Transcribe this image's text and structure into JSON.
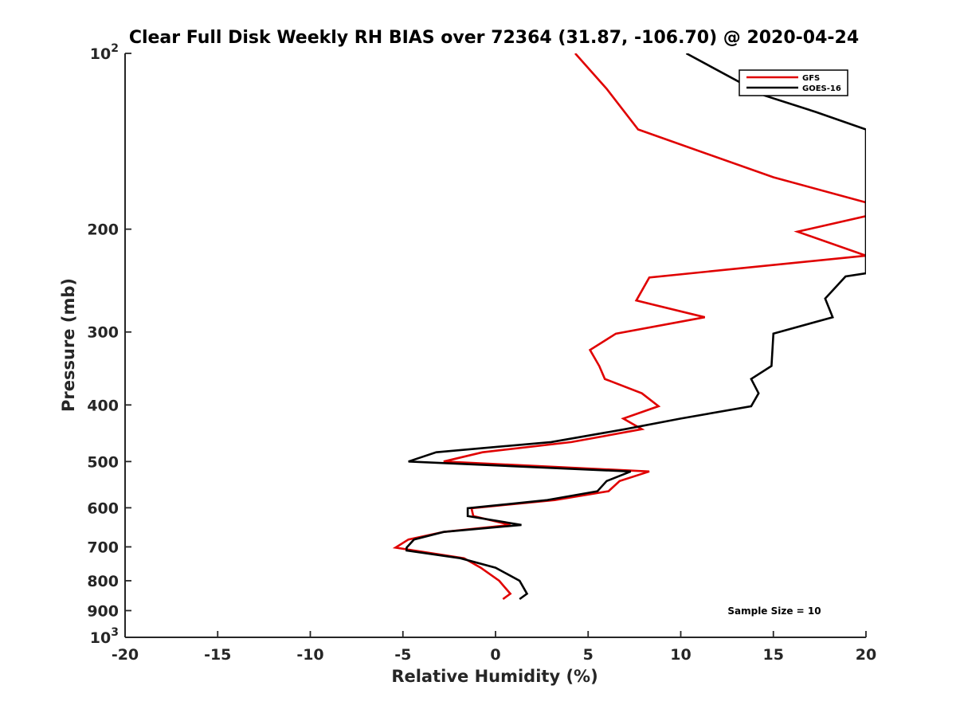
{
  "chart_data": {
    "type": "line",
    "title": "Clear Full Disk Weekly RH BIAS over 72364 (31.87, -106.70) @ 2020-04-24",
    "xlabel": "Relative Humidity (%)",
    "ylabel": "Pressure (mb)",
    "xlim": [
      -20,
      20
    ],
    "ylim": [
      100,
      1000
    ],
    "y_scale": "log",
    "y_reversed": true,
    "x_ticks": [
      "-20",
      "-15",
      "-10",
      "-5",
      "0",
      "5",
      "10",
      "15",
      "20"
    ],
    "y_ticks": [
      {
        "value": 100,
        "base": "10",
        "exp": "2"
      },
      {
        "value": 200,
        "label": "200"
      },
      {
        "value": 300,
        "label": "300"
      },
      {
        "value": 400,
        "label": "400"
      },
      {
        "value": 500,
        "label": "500"
      },
      {
        "value": 600,
        "label": "600"
      },
      {
        "value": 700,
        "label": "700"
      },
      {
        "value": 800,
        "label": "800"
      },
      {
        "value": 900,
        "label": "900"
      },
      {
        "value": 1000,
        "base": "10",
        "exp": "3"
      }
    ],
    "grid": false,
    "legend_position": "top-right",
    "annotation": "Sample Size = 10",
    "series": [
      {
        "name": "GFS",
        "color": "#e00000",
        "points": [
          [
            4.3,
            100
          ],
          [
            6.0,
            115
          ],
          [
            7.7,
            135
          ],
          [
            15.0,
            163
          ],
          [
            20.0,
            180
          ],
          [
            20.0,
            190
          ],
          [
            16.3,
            202
          ],
          [
            20.0,
            222
          ],
          [
            8.3,
            242
          ],
          [
            7.6,
            265
          ],
          [
            11.3,
            283
          ],
          [
            6.5,
            302
          ],
          [
            5.1,
            322
          ],
          [
            5.6,
            343
          ],
          [
            5.9,
            361
          ],
          [
            7.9,
            382
          ],
          [
            8.8,
            402
          ],
          [
            6.9,
            422
          ],
          [
            7.9,
            440
          ],
          [
            4.1,
            463
          ],
          [
            -0.7,
            482
          ],
          [
            -2.8,
            500
          ],
          [
            8.3,
            520
          ],
          [
            6.7,
            540
          ],
          [
            6.1,
            562
          ],
          [
            3.2,
            582
          ],
          [
            -1.3,
            601
          ],
          [
            -1.2,
            620
          ],
          [
            0.8,
            642
          ],
          [
            -2.8,
            660
          ],
          [
            -4.7,
            680
          ],
          [
            -5.4,
            702
          ],
          [
            -1.7,
            732
          ],
          [
            -0.8,
            760
          ],
          [
            0.2,
            800
          ],
          [
            0.8,
            842
          ],
          [
            0.4,
            860
          ]
        ]
      },
      {
        "name": "GOES-16",
        "color": "#000000",
        "points": [
          [
            10.3,
            100
          ],
          [
            14.5,
            118
          ],
          [
            17.3,
            126
          ],
          [
            20.0,
            135
          ],
          [
            20.0,
            238
          ],
          [
            18.9,
            241
          ],
          [
            17.8,
            263
          ],
          [
            18.2,
            283
          ],
          [
            15.0,
            302
          ],
          [
            14.9,
            343
          ],
          [
            13.8,
            361
          ],
          [
            14.2,
            382
          ],
          [
            13.8,
            402
          ],
          [
            10.0,
            422
          ],
          [
            7.0,
            440
          ],
          [
            3.0,
            463
          ],
          [
            -3.2,
            482
          ],
          [
            -4.7,
            500
          ],
          [
            7.3,
            520
          ],
          [
            6.0,
            540
          ],
          [
            5.5,
            562
          ],
          [
            2.8,
            582
          ],
          [
            -1.5,
            601
          ],
          [
            -1.5,
            620
          ],
          [
            1.4,
            642
          ],
          [
            -2.8,
            660
          ],
          [
            -4.4,
            680
          ],
          [
            -4.8,
            702
          ],
          [
            -4.8,
            710
          ],
          [
            -1.9,
            732
          ],
          [
            0.0,
            760
          ],
          [
            1.3,
            800
          ],
          [
            1.7,
            842
          ],
          [
            1.3,
            860
          ]
        ]
      }
    ]
  }
}
